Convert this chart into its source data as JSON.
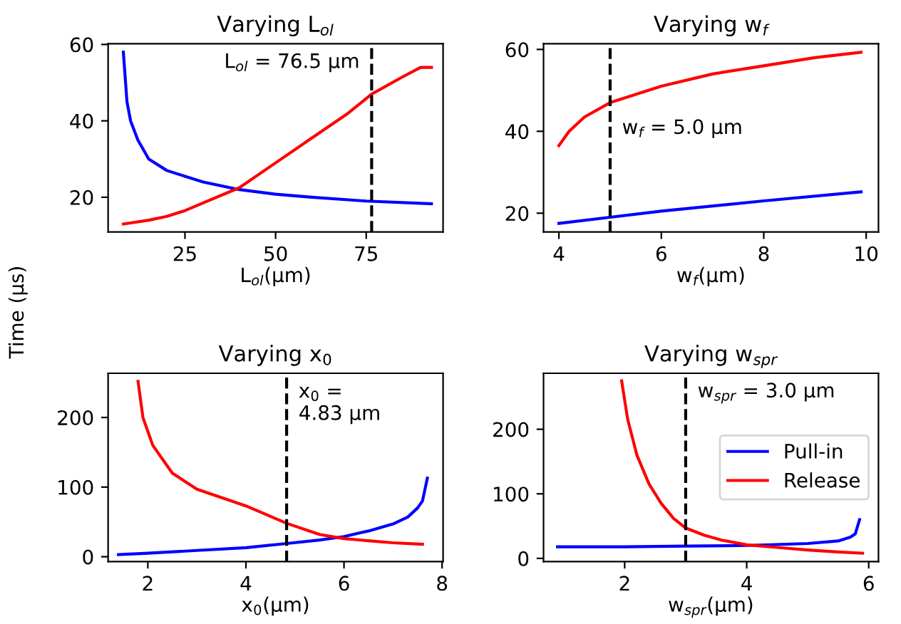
{
  "chart_data": [
    {
      "type": "line",
      "title": "Varying L$_{ol}$",
      "xlabel": "L$_{ol}$(μm)",
      "ylabel": "Time (μs)",
      "xlim": [
        3.8,
        96.2
      ],
      "ylim": [
        10.9,
        60.2
      ],
      "xticks": [
        25,
        50,
        75
      ],
      "yticks": [
        20,
        40,
        60
      ],
      "grid": false,
      "legend": false,
      "series": [
        {
          "color": "#0000ff",
          "x": [
            8,
            9,
            10,
            12,
            15,
            20,
            25,
            30,
            40,
            50,
            60,
            75,
            93
          ],
          "values": [
            58,
            45,
            40,
            35,
            30,
            27,
            25.5,
            24,
            22,
            20.8,
            20,
            19,
            18.3
          ]
        },
        {
          "color": "#ff0000",
          "x": [
            8,
            15,
            20,
            25,
            30,
            40,
            50,
            60,
            70,
            76.5,
            85,
            90,
            93
          ],
          "values": [
            13,
            14,
            15,
            16.5,
            18.5,
            22.5,
            29,
            35.5,
            42,
            47,
            51.5,
            54,
            54
          ]
        }
      ],
      "ref_lines": [
        {
          "axis": "x",
          "value": 76.5,
          "label": "L$_{ol}$ = 76.5 μm",
          "color": "#000000",
          "line_style": "dashed"
        }
      ]
    },
    {
      "type": "line",
      "title": "Varying w$_{f}$",
      "xlabel": "w$_{f}$(μm)",
      "xlim": [
        3.7,
        10.24
      ],
      "ylim": [
        15.4,
        61.4
      ],
      "xticks": [
        4,
        6,
        8,
        10
      ],
      "yticks": [
        20,
        40,
        60
      ],
      "grid": false,
      "legend": false,
      "series": [
        {
          "color": "#0000ff",
          "x": [
            4,
            5,
            6,
            8,
            9.9
          ],
          "values": [
            17.5,
            19,
            20.5,
            23,
            25.2
          ]
        },
        {
          "color": "#ff0000",
          "x": [
            4,
            4.2,
            4.5,
            5,
            6,
            7,
            8,
            9,
            9.9
          ],
          "values": [
            36.5,
            40,
            43.5,
            47,
            51,
            54,
            56,
            58,
            59.3
          ]
        }
      ],
      "ref_lines": [
        {
          "axis": "x",
          "value": 5.0,
          "label": "w$_{f}$ = 5.0 μm",
          "color": "#000000",
          "line_style": "dashed"
        }
      ]
    },
    {
      "type": "line",
      "title": "Varying x$_{0}$",
      "xlabel": "x$_{0}$(μm)",
      "xlim": [
        1.19,
        8.02
      ],
      "ylim": [
        -7,
        263.5
      ],
      "xticks": [
        2,
        4,
        6,
        8
      ],
      "yticks": [
        0,
        100,
        200
      ],
      "grid": false,
      "legend": false,
      "series": [
        {
          "color": "#0000ff",
          "x": [
            1.4,
            2,
            3,
            4,
            4.83,
            5.5,
            6,
            6.5,
            7,
            7.3,
            7.5,
            7.6,
            7.7
          ],
          "values": [
            3,
            5,
            9,
            13,
            19,
            24,
            29,
            37,
            47,
            57,
            70,
            80,
            113
          ]
        },
        {
          "color": "#ff0000",
          "x": [
            1.8,
            1.9,
            2.1,
            2.5,
            3,
            3.5,
            4,
            4.5,
            4.83,
            5.5,
            6,
            7,
            7.6
          ],
          "values": [
            252,
            200,
            160,
            120,
            97,
            85,
            73,
            58,
            48,
            32,
            26,
            20,
            18
          ]
        }
      ],
      "ref_lines": [
        {
          "axis": "x",
          "value": 4.83,
          "label": "x$_{0}$ =\n4.83 μm",
          "color": "#000000",
          "line_style": "dashed"
        }
      ]
    },
    {
      "type": "line",
      "title": "Varying w$_{spr}$",
      "xlabel": "w$_{spr}$(μm)",
      "xlim": [
        0.67,
        6.16
      ],
      "ylim": [
        -5,
        286.7
      ],
      "xticks": [
        2,
        4,
        6
      ],
      "yticks": [
        0,
        100,
        200
      ],
      "grid": false,
      "legend": "center right",
      "series": [
        {
          "name": "Pull-in",
          "color": "#0000ff",
          "x": [
            0.9,
            2,
            3,
            4,
            5,
            5.5,
            5.7,
            5.78,
            5.85
          ],
          "values": [
            18,
            18,
            19,
            20,
            23,
            27,
            33,
            38,
            60
          ]
        },
        {
          "name": "Release",
          "color": "#ff0000",
          "x": [
            1.95,
            2.05,
            2.2,
            2.4,
            2.6,
            2.8,
            3,
            3.3,
            3.6,
            4,
            4.5,
            5,
            5.5,
            5.9
          ],
          "values": [
            275,
            215,
            160,
            115,
            85,
            62,
            47,
            36,
            28,
            21,
            17,
            13,
            10,
            8
          ]
        }
      ],
      "ref_lines": [
        {
          "axis": "x",
          "value": 3.0,
          "label": "w$_{spr}$ = 3.0 μm",
          "color": "#000000",
          "line_style": "dashed"
        }
      ]
    }
  ]
}
